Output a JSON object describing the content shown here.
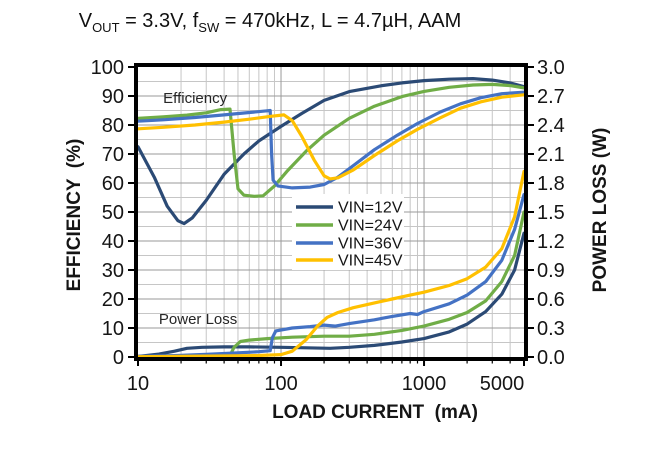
{
  "chart_data": {
    "type": "line",
    "title_text": "VOUT = 3.3V, fSW = 470kHz, L = 4.7µH, AAM",
    "title_segments": [
      {
        "t": "V"
      },
      {
        "t": "OUT",
        "sub": true
      },
      {
        "t": " = 3.3V, f"
      },
      {
        "t": "SW",
        "sub": true
      },
      {
        "t": " = 470kHz, L = 4.7µH, AAM"
      }
    ],
    "x_axis": {
      "label": "LOAD CURRENT  (mA)",
      "scale": "log",
      "min": 10,
      "max": 5000,
      "tick_values": [
        10,
        100,
        1000,
        5000
      ],
      "tick_labels": [
        "10",
        "100",
        "1000",
        "5000"
      ],
      "minor_grid": "log-decades"
    },
    "y_left": {
      "label": "EFFICIENCY  (%)",
      "min": 0,
      "max": 100,
      "major_step": 10,
      "minor_step": 5,
      "tick_labels": [
        "0",
        "10",
        "20",
        "30",
        "40",
        "50",
        "60",
        "70",
        "80",
        "90",
        "100"
      ]
    },
    "y_right": {
      "label": "POWER LOSS (W)",
      "min": 0.0,
      "max": 3.0,
      "major_step": 0.3,
      "tick_labels": [
        "0.0",
        "0.3",
        "0.6",
        "0.9",
        "1.2",
        "1.5",
        "1.8",
        "2.1",
        "2.4",
        "2.7",
        "3.0"
      ]
    },
    "annotations": [
      {
        "text": "Efficiency",
        "x_mA": 15,
        "y_pct": 87.6
      },
      {
        "text": "Power Loss",
        "x_mA": 14,
        "y_pct": 11.4
      }
    ],
    "legend": {
      "entries": [
        {
          "label": "VIN=12V",
          "color": "#2b4a75"
        },
        {
          "label": "VIN=24V",
          "color": "#70ad47"
        },
        {
          "label": "VIN=36V",
          "color": "#4472c4"
        },
        {
          "label": "VIN=45V",
          "color": "#ffc000"
        }
      ]
    },
    "series": [
      {
        "name": "VIN=12V",
        "color": "#2b4a75",
        "efficiency_pct": [
          [
            10,
            72.5
          ],
          [
            13,
            62
          ],
          [
            16,
            52
          ],
          [
            19,
            47
          ],
          [
            21,
            46
          ],
          [
            24,
            48
          ],
          [
            30,
            54
          ],
          [
            40,
            63
          ],
          [
            55,
            70
          ],
          [
            70,
            74.5
          ],
          [
            100,
            79.5
          ],
          [
            140,
            84
          ],
          [
            200,
            88.5
          ],
          [
            300,
            91.5
          ],
          [
            500,
            93.5
          ],
          [
            700,
            94.5
          ],
          [
            1000,
            95.3
          ],
          [
            1500,
            95.8
          ],
          [
            2200,
            96
          ],
          [
            3000,
            95.5
          ],
          [
            4000,
            94.5
          ],
          [
            5000,
            93.2
          ]
        ],
        "power_loss_w": [
          [
            10,
            0.005
          ],
          [
            14,
            0.03
          ],
          [
            18,
            0.06
          ],
          [
            22,
            0.09
          ],
          [
            28,
            0.1
          ],
          [
            40,
            0.105
          ],
          [
            60,
            0.105
          ],
          [
            100,
            0.1
          ],
          [
            150,
            0.095
          ],
          [
            220,
            0.09
          ],
          [
            300,
            0.1
          ],
          [
            450,
            0.12
          ],
          [
            700,
            0.155
          ],
          [
            1000,
            0.19
          ],
          [
            1500,
            0.26
          ],
          [
            2000,
            0.34
          ],
          [
            2700,
            0.47
          ],
          [
            3500,
            0.65
          ],
          [
            4300,
            0.9
          ],
          [
            5000,
            1.28
          ]
        ]
      },
      {
        "name": "VIN=24V",
        "color": "#70ad47",
        "efficiency_pct": [
          [
            10,
            82.3
          ],
          [
            15,
            82.8
          ],
          [
            22,
            83.4
          ],
          [
            30,
            84.2
          ],
          [
            38,
            85.3
          ],
          [
            44,
            85.5
          ],
          [
            47,
            70
          ],
          [
            50,
            58
          ],
          [
            55,
            55.8
          ],
          [
            65,
            55.4
          ],
          [
            75,
            55.6
          ],
          [
            90,
            59
          ],
          [
            110,
            64
          ],
          [
            150,
            71
          ],
          [
            200,
            76.5
          ],
          [
            300,
            82.3
          ],
          [
            450,
            86.5
          ],
          [
            700,
            89.8
          ],
          [
            1000,
            91.6
          ],
          [
            1500,
            93
          ],
          [
            2200,
            93.8
          ],
          [
            3000,
            94
          ],
          [
            4000,
            93.6
          ],
          [
            5000,
            92.8
          ]
        ],
        "power_loss_w": [
          [
            10,
            0.004
          ],
          [
            20,
            0.008
          ],
          [
            35,
            0.013
          ],
          [
            44,
            0.018
          ],
          [
            47,
            0.1
          ],
          [
            52,
            0.16
          ],
          [
            60,
            0.175
          ],
          [
            80,
            0.19
          ],
          [
            120,
            0.205
          ],
          [
            200,
            0.215
          ],
          [
            300,
            0.215
          ],
          [
            450,
            0.235
          ],
          [
            700,
            0.275
          ],
          [
            1000,
            0.32
          ],
          [
            1500,
            0.39
          ],
          [
            2000,
            0.46
          ],
          [
            2700,
            0.58
          ],
          [
            3500,
            0.78
          ],
          [
            4300,
            1.05
          ],
          [
            5000,
            1.5
          ]
        ]
      },
      {
        "name": "VIN=36V",
        "color": "#4472c4",
        "efficiency_pct": [
          [
            10,
            81.3
          ],
          [
            15,
            81.8
          ],
          [
            25,
            82.6
          ],
          [
            40,
            83.5
          ],
          [
            60,
            84.3
          ],
          [
            80,
            84.9
          ],
          [
            84,
            85
          ],
          [
            86,
            70
          ],
          [
            88,
            61
          ],
          [
            95,
            59
          ],
          [
            120,
            58.3
          ],
          [
            160,
            58.6
          ],
          [
            200,
            59.5
          ],
          [
            250,
            62
          ],
          [
            320,
            66
          ],
          [
            450,
            71.5
          ],
          [
            650,
            76.5
          ],
          [
            900,
            80.5
          ],
          [
            1300,
            84.5
          ],
          [
            1800,
            87.3
          ],
          [
            2500,
            89.4
          ],
          [
            3500,
            90.8
          ],
          [
            5000,
            91.3
          ]
        ],
        "power_loss_w": [
          [
            10,
            0.007
          ],
          [
            18,
            0.015
          ],
          [
            30,
            0.028
          ],
          [
            50,
            0.042
          ],
          [
            70,
            0.055
          ],
          [
            84,
            0.065
          ],
          [
            87,
            0.2
          ],
          [
            92,
            0.27
          ],
          [
            120,
            0.3
          ],
          [
            160,
            0.315
          ],
          [
            200,
            0.33
          ],
          [
            240,
            0.32
          ],
          [
            300,
            0.345
          ],
          [
            450,
            0.385
          ],
          [
            600,
            0.42
          ],
          [
            800,
            0.45
          ],
          [
            900,
            0.44
          ],
          [
            1000,
            0.47
          ],
          [
            1500,
            0.55
          ],
          [
            2000,
            0.64
          ],
          [
            2700,
            0.78
          ],
          [
            3500,
            1.0
          ],
          [
            4300,
            1.32
          ],
          [
            5000,
            1.68
          ]
        ]
      },
      {
        "name": "VIN=45V",
        "color": "#ffc000",
        "efficiency_pct": [
          [
            10,
            78.7
          ],
          [
            15,
            79.2
          ],
          [
            25,
            80
          ],
          [
            40,
            81
          ],
          [
            60,
            82
          ],
          [
            85,
            83
          ],
          [
            105,
            83.5
          ],
          [
            120,
            81.5
          ],
          [
            140,
            76
          ],
          [
            170,
            68
          ],
          [
            200,
            62.5
          ],
          [
            220,
            61.4
          ],
          [
            250,
            61.8
          ],
          [
            320,
            64.5
          ],
          [
            450,
            69.5
          ],
          [
            650,
            74.5
          ],
          [
            900,
            78.5
          ],
          [
            1300,
            82.5
          ],
          [
            1800,
            85.8
          ],
          [
            2500,
            88
          ],
          [
            3500,
            89.6
          ],
          [
            5000,
            90.4
          ]
        ],
        "power_loss_w": [
          [
            10,
            0.003
          ],
          [
            20,
            0.006
          ],
          [
            40,
            0.01
          ],
          [
            70,
            0.016
          ],
          [
            100,
            0.025
          ],
          [
            120,
            0.06
          ],
          [
            150,
            0.18
          ],
          [
            180,
            0.32
          ],
          [
            210,
            0.41
          ],
          [
            250,
            0.46
          ],
          [
            320,
            0.51
          ],
          [
            450,
            0.56
          ],
          [
            600,
            0.6
          ],
          [
            800,
            0.64
          ],
          [
            1000,
            0.67
          ],
          [
            1500,
            0.74
          ],
          [
            2000,
            0.81
          ],
          [
            2700,
            0.93
          ],
          [
            3500,
            1.12
          ],
          [
            4300,
            1.45
          ],
          [
            5000,
            1.92
          ]
        ]
      }
    ],
    "colors": {
      "grid_minor": "#c6c6c6",
      "grid_major": "#9a9a9a",
      "border": "#000000",
      "text": "#151515",
      "legend_background": "#ffffff"
    }
  }
}
